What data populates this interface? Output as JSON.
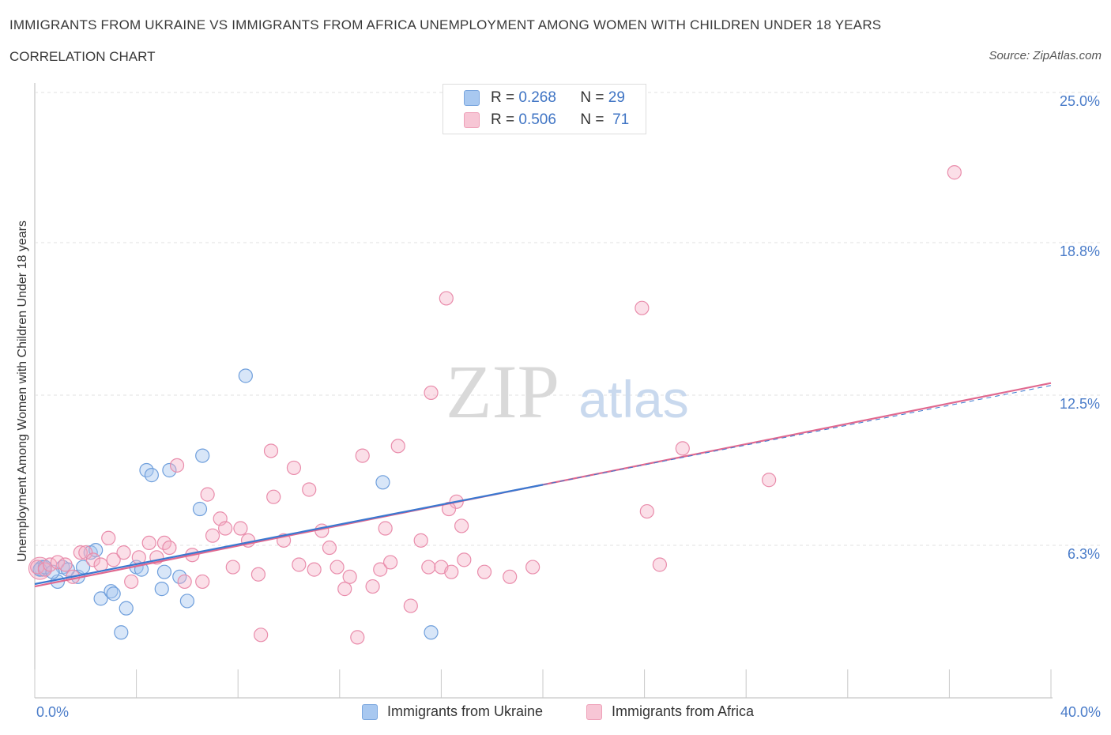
{
  "title": "IMMIGRANTS FROM UKRAINE VS IMMIGRANTS FROM AFRICA UNEMPLOYMENT AMONG WOMEN WITH CHILDREN UNDER 18 YEARS",
  "subtitle": "CORRELATION CHART",
  "source": "Source: ZipAtlas.com",
  "watermark": {
    "zip": "ZIP",
    "atlas": "atlas"
  },
  "legend": {
    "ukraine": {
      "r_label": "R =",
      "r_value": "0.268",
      "n_label": "N =",
      "n_value": "29"
    },
    "africa": {
      "r_label": "R =",
      "r_value": "0.506",
      "n_label": "N =",
      "n_value": "71"
    }
  },
  "colors": {
    "ukraine": "#a8c8f0",
    "ukraine_line": "#3a78d0",
    "africa": "#f4b0c6",
    "africa_line": "#e0688f",
    "tick_label": "#4a7cc9",
    "grid": "#e2e2e2"
  },
  "chart_data": {
    "type": "scatter",
    "title": "IMMIGRANTS FROM UKRAINE VS IMMIGRANTS FROM AFRICA UNEMPLOYMENT AMONG WOMEN WITH CHILDREN UNDER 18 YEARS",
    "xlabel": "",
    "ylabel": "Unemployment Among Women with Children Under 18 years",
    "xlim": [
      0,
      40
    ],
    "ylim": [
      0,
      25
    ],
    "x_tick_labels": [
      "0.0%",
      "40.0%"
    ],
    "y_ticks": [
      6.3,
      12.5,
      18.8,
      25.0
    ],
    "y_tick_labels": [
      "6.3%",
      "12.5%",
      "18.8%",
      "25.0%"
    ],
    "grid": true,
    "legend_position": "top-center",
    "series": [
      {
        "name": "Immigrants from Ukraine",
        "points": [
          [
            0.2,
            5.3
          ],
          [
            0.4,
            5.4
          ],
          [
            0.9,
            4.8
          ],
          [
            1.1,
            5.4
          ],
          [
            1.7,
            5.0
          ],
          [
            1.9,
            5.4
          ],
          [
            2.2,
            6.0
          ],
          [
            2.4,
            6.1
          ],
          [
            2.6,
            4.1
          ],
          [
            3.0,
            4.4
          ],
          [
            3.1,
            4.3
          ],
          [
            3.4,
            2.7
          ],
          [
            3.6,
            3.7
          ],
          [
            4.0,
            5.4
          ],
          [
            4.2,
            5.3
          ],
          [
            4.4,
            9.4
          ],
          [
            4.6,
            9.2
          ],
          [
            5.0,
            4.5
          ],
          [
            5.1,
            5.2
          ],
          [
            5.3,
            9.4
          ],
          [
            5.7,
            5.0
          ],
          [
            6.0,
            4.0
          ],
          [
            6.5,
            7.8
          ],
          [
            6.6,
            10.0
          ],
          [
            8.3,
            13.3
          ],
          [
            13.7,
            8.9
          ],
          [
            15.6,
            2.7
          ],
          [
            1.3,
            5.3
          ],
          [
            0.7,
            5.2
          ]
        ],
        "trend": {
          "x": [
            0,
            20
          ],
          "y": [
            4.7,
            8.8
          ]
        }
      },
      {
        "name": "Immigrants from Africa",
        "points": [
          [
            0.1,
            5.4
          ],
          [
            0.4,
            5.3
          ],
          [
            0.6,
            5.5
          ],
          [
            0.9,
            5.6
          ],
          [
            1.2,
            5.5
          ],
          [
            1.5,
            5.0
          ],
          [
            1.8,
            6.0
          ],
          [
            2.0,
            6.0
          ],
          [
            2.3,
            5.7
          ],
          [
            2.6,
            5.5
          ],
          [
            2.9,
            6.6
          ],
          [
            3.1,
            5.7
          ],
          [
            3.5,
            6.0
          ],
          [
            3.8,
            4.8
          ],
          [
            4.1,
            5.8
          ],
          [
            4.5,
            6.4
          ],
          [
            4.8,
            5.8
          ],
          [
            5.1,
            6.4
          ],
          [
            5.3,
            6.2
          ],
          [
            5.6,
            9.6
          ],
          [
            5.9,
            4.8
          ],
          [
            6.2,
            5.9
          ],
          [
            6.6,
            4.8
          ],
          [
            6.8,
            8.4
          ],
          [
            7.0,
            6.7
          ],
          [
            7.3,
            7.4
          ],
          [
            7.5,
            7.0
          ],
          [
            7.8,
            5.4
          ],
          [
            8.1,
            7.0
          ],
          [
            8.4,
            6.5
          ],
          [
            8.8,
            5.1
          ],
          [
            8.9,
            2.6
          ],
          [
            9.3,
            10.2
          ],
          [
            9.4,
            8.3
          ],
          [
            9.8,
            6.5
          ],
          [
            10.2,
            9.5
          ],
          [
            10.4,
            5.5
          ],
          [
            10.8,
            8.6
          ],
          [
            11.0,
            5.3
          ],
          [
            11.3,
            6.9
          ],
          [
            11.6,
            6.2
          ],
          [
            11.9,
            5.4
          ],
          [
            12.2,
            4.5
          ],
          [
            12.4,
            5.0
          ],
          [
            12.7,
            2.5
          ],
          [
            12.9,
            10.0
          ],
          [
            13.3,
            4.6
          ],
          [
            13.6,
            5.3
          ],
          [
            13.8,
            7.0
          ],
          [
            14.0,
            5.6
          ],
          [
            14.3,
            10.4
          ],
          [
            14.8,
            3.8
          ],
          [
            15.2,
            6.5
          ],
          [
            15.5,
            5.4
          ],
          [
            15.6,
            12.6
          ],
          [
            16.0,
            5.4
          ],
          [
            16.2,
            16.5
          ],
          [
            16.4,
            5.2
          ],
          [
            16.6,
            8.1
          ],
          [
            16.8,
            7.1
          ],
          [
            16.9,
            5.7
          ],
          [
            17.7,
            5.2
          ],
          [
            18.7,
            5.0
          ],
          [
            19.6,
            5.4
          ],
          [
            23.9,
            16.1
          ],
          [
            24.1,
            7.7
          ],
          [
            24.6,
            5.5
          ],
          [
            25.5,
            10.3
          ],
          [
            28.9,
            9.0
          ],
          [
            36.2,
            21.7
          ],
          [
            16.3,
            7.8
          ]
        ],
        "trend": {
          "x": [
            0,
            40
          ],
          "y": [
            4.6,
            13.0
          ]
        }
      }
    ]
  },
  "bottom_legend": {
    "ukraine": "Immigrants from Ukraine",
    "africa": "Immigrants from Africa"
  }
}
